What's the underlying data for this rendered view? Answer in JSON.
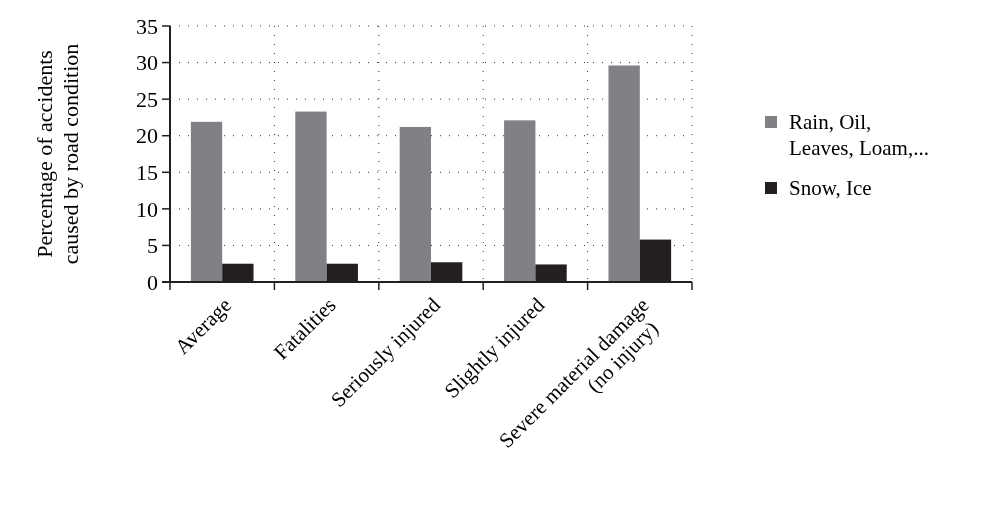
{
  "chart_data": {
    "type": "bar",
    "ylabel": "Percentage of accidents\ncaused by road condition",
    "categories": [
      "Average",
      "Fatalities",
      "Seriously injured",
      "Slightly injured",
      "Severe material damage\n(no injury)"
    ],
    "series": [
      {
        "name": "Rain, Oil,\nLeaves, Loam,...",
        "color": "#808184",
        "values": [
          21.9,
          23.3,
          21.2,
          22.1,
          29.6
        ]
      },
      {
        "name": "Snow, Ice",
        "color": "#231f20",
        "values": [
          2.5,
          2.5,
          2.7,
          2.4,
          5.8
        ]
      }
    ],
    "ylim": [
      0,
      35
    ],
    "yticks": [
      0,
      5,
      10,
      15,
      20,
      25,
      30,
      35
    ],
    "grid": true,
    "legend": "right"
  }
}
